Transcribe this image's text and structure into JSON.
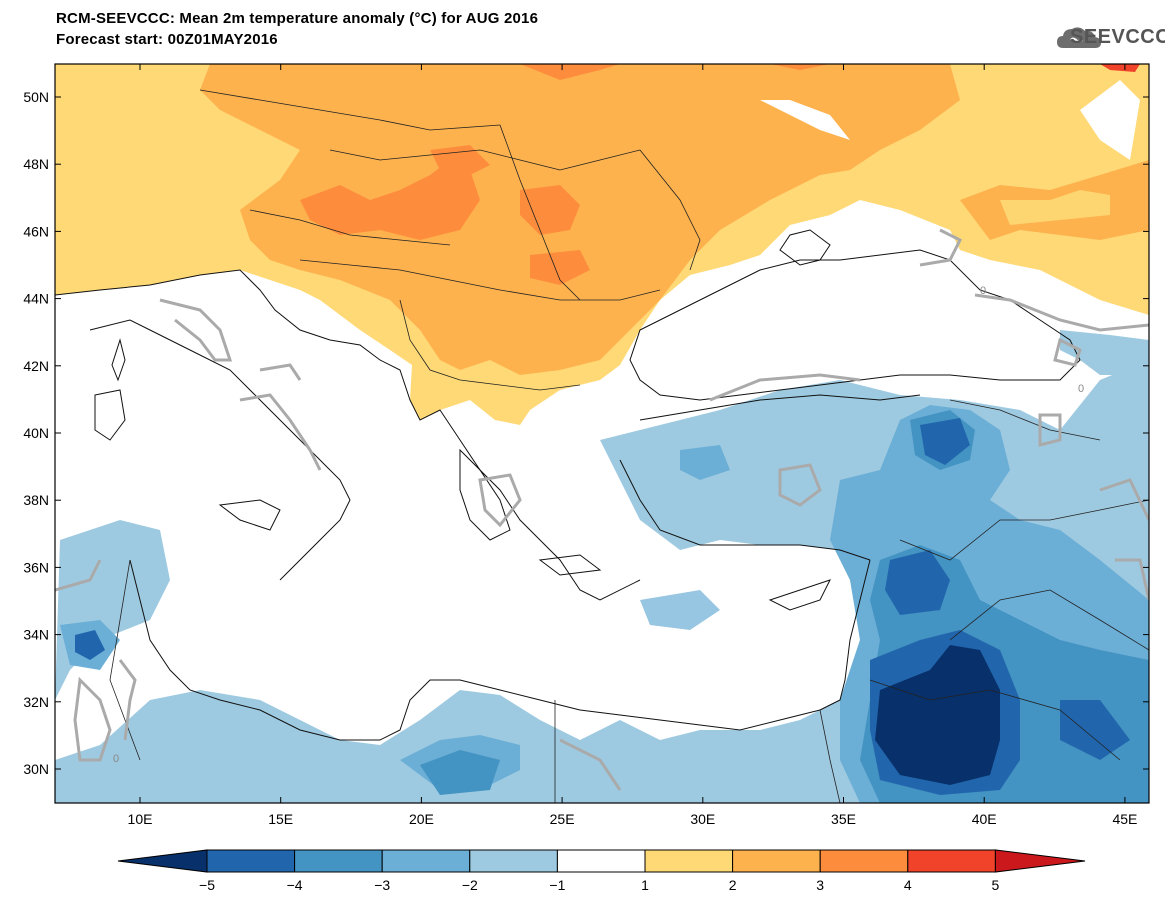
{
  "header": {
    "title_line1": "RCM-SEEVCCC: Mean 2m temperature anomaly (°C) for AUG 2016",
    "title_line2": "Forecast start: 00Z01MAY2016",
    "logo_text": "SEEVCCC",
    "logo_icon": "cloud-icon"
  },
  "map": {
    "lat_labels": [
      "50N",
      "48N",
      "46N",
      "44N",
      "42N",
      "40N",
      "38N",
      "36N",
      "34N",
      "32N",
      "30N"
    ],
    "lon_labels": [
      "10E",
      "15E",
      "20E",
      "25E",
      "30E",
      "35E",
      "40E",
      "45E"
    ],
    "contour_labels": [
      "0",
      "0",
      "0"
    ]
  },
  "colorbar": {
    "ticks": [
      "−5",
      "−4",
      "−3",
      "−2",
      "−1",
      "1",
      "2",
      "3",
      "4",
      "5"
    ],
    "colors": [
      "#08306b",
      "#2166ac",
      "#4393c3",
      "#6baed6",
      "#9ecae1",
      "#ffffff",
      "#fed976",
      "#fdb24e",
      "#fd8d3c",
      "#f0432a",
      "#cb181d"
    ]
  }
}
